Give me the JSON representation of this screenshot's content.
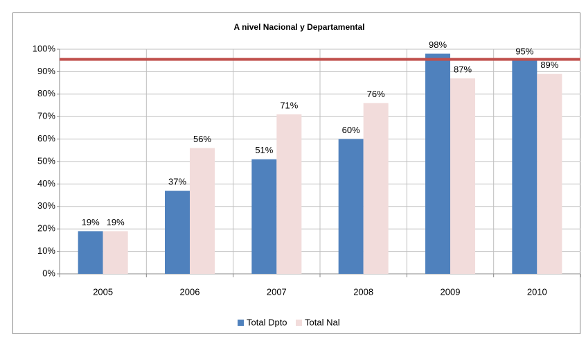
{
  "chart_data": {
    "type": "bar",
    "title": "A nivel Nacional y Departamental",
    "categories": [
      "2005",
      "2006",
      "2007",
      "2008",
      "2009",
      "2010"
    ],
    "series": [
      {
        "name": "Total Dpto",
        "color": "#4f81bd",
        "values": [
          19,
          37,
          51,
          60,
          98,
          95
        ],
        "value_labels": [
          "19%",
          "37%",
          "51%",
          "60%",
          "98%",
          "95%"
        ]
      },
      {
        "name": "Total Nal",
        "color": "#f2dcdb",
        "values": [
          19,
          56,
          71,
          76,
          87,
          89
        ],
        "value_labels": [
          "19%",
          "56%",
          "71%",
          "76%",
          "87%",
          "89%"
        ]
      }
    ],
    "ylim": [
      0,
      100
    ],
    "yticks": [
      {
        "value": 0,
        "label": "0%"
      },
      {
        "value": 10,
        "label": "10%"
      },
      {
        "value": 20,
        "label": "20%"
      },
      {
        "value": 30,
        "label": "30%"
      },
      {
        "value": 40,
        "label": "40%"
      },
      {
        "value": 50,
        "label": "50%"
      },
      {
        "value": 60,
        "label": "60%"
      },
      {
        "value": 70,
        "label": "70%"
      },
      {
        "value": 80,
        "label": "80%"
      },
      {
        "value": 90,
        "label": "90%"
      },
      {
        "value": 100,
        "label": "100%"
      }
    ],
    "grid": true,
    "reference_line": {
      "value": 95.5,
      "color": "#c0504d"
    },
    "legend": "bottom"
  }
}
